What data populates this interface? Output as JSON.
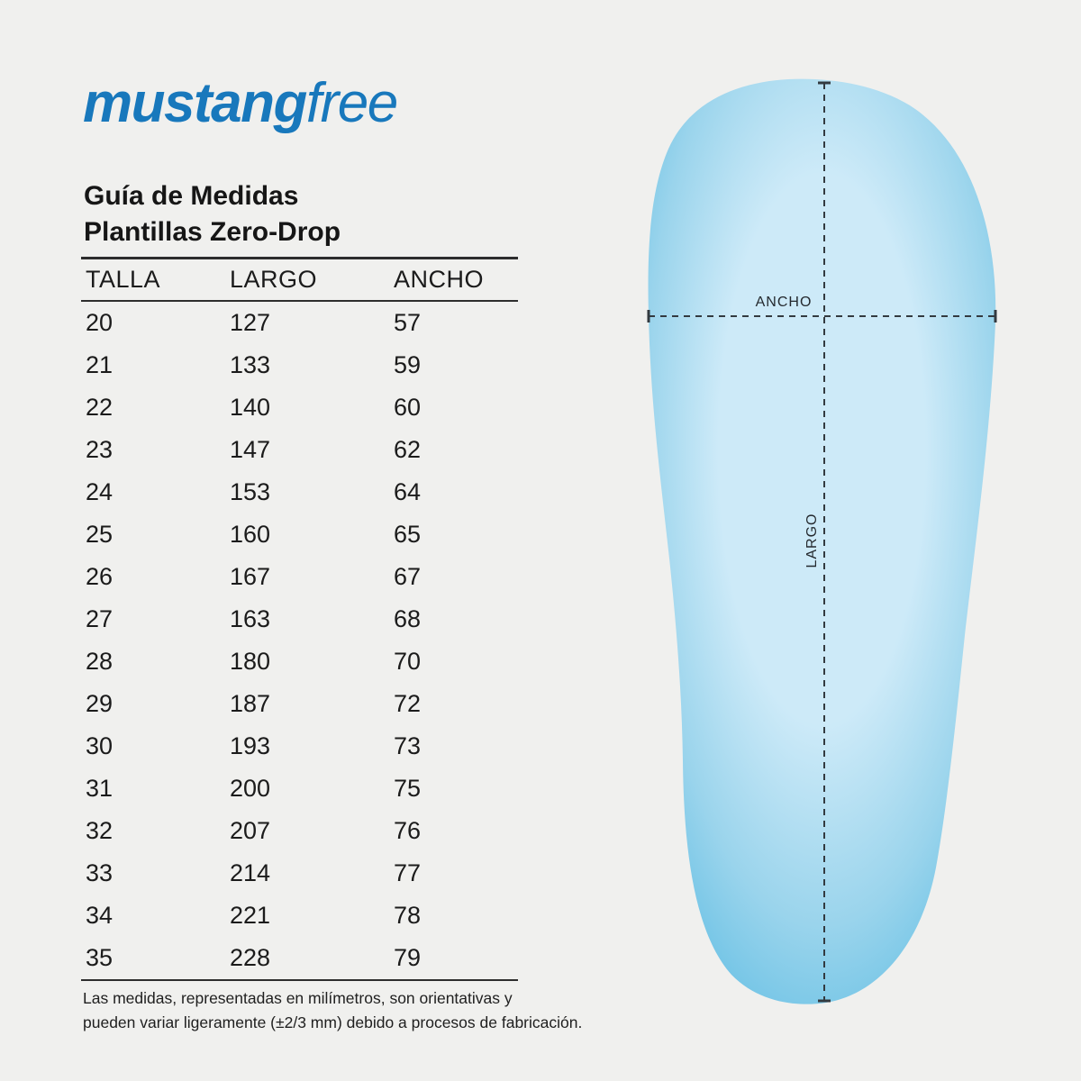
{
  "logo": {
    "brand": "mustang",
    "suffix": "free",
    "color": "#1878bc"
  },
  "title": {
    "line1": "Guía de Medidas",
    "line2": "Plantillas Zero-Drop"
  },
  "table": {
    "headers": [
      "TALLA",
      "LARGO",
      "ANCHO"
    ],
    "rows": [
      [
        "20",
        "127",
        "57"
      ],
      [
        "21",
        "133",
        "59"
      ],
      [
        "22",
        "140",
        "60"
      ],
      [
        "23",
        "147",
        "62"
      ],
      [
        "24",
        "153",
        "64"
      ],
      [
        "25",
        "160",
        "65"
      ],
      [
        "26",
        "167",
        "67"
      ],
      [
        "27",
        "163",
        "68"
      ],
      [
        "28",
        "180",
        "70"
      ],
      [
        "29",
        "187",
        "72"
      ],
      [
        "30",
        "193",
        "73"
      ],
      [
        "31",
        "200",
        "75"
      ],
      [
        "32",
        "207",
        "76"
      ],
      [
        "33",
        "214",
        "77"
      ],
      [
        "34",
        "221",
        "78"
      ],
      [
        "35",
        "228",
        "79"
      ]
    ],
    "footnote_line1": "Las medidas, representadas en milímetros, son orientativas y",
    "footnote_line2": "pueden variar ligeramente (±2/3 mm) debido a procesos de fabricación."
  },
  "diagram": {
    "width_label": "ANCHO",
    "length_label": "LARGO",
    "dash_color": "#333a40",
    "insole_center_color": "#cdeaf8",
    "insole_mid_color": "#9ad4ec",
    "insole_edge_color": "#6cc2e5"
  }
}
